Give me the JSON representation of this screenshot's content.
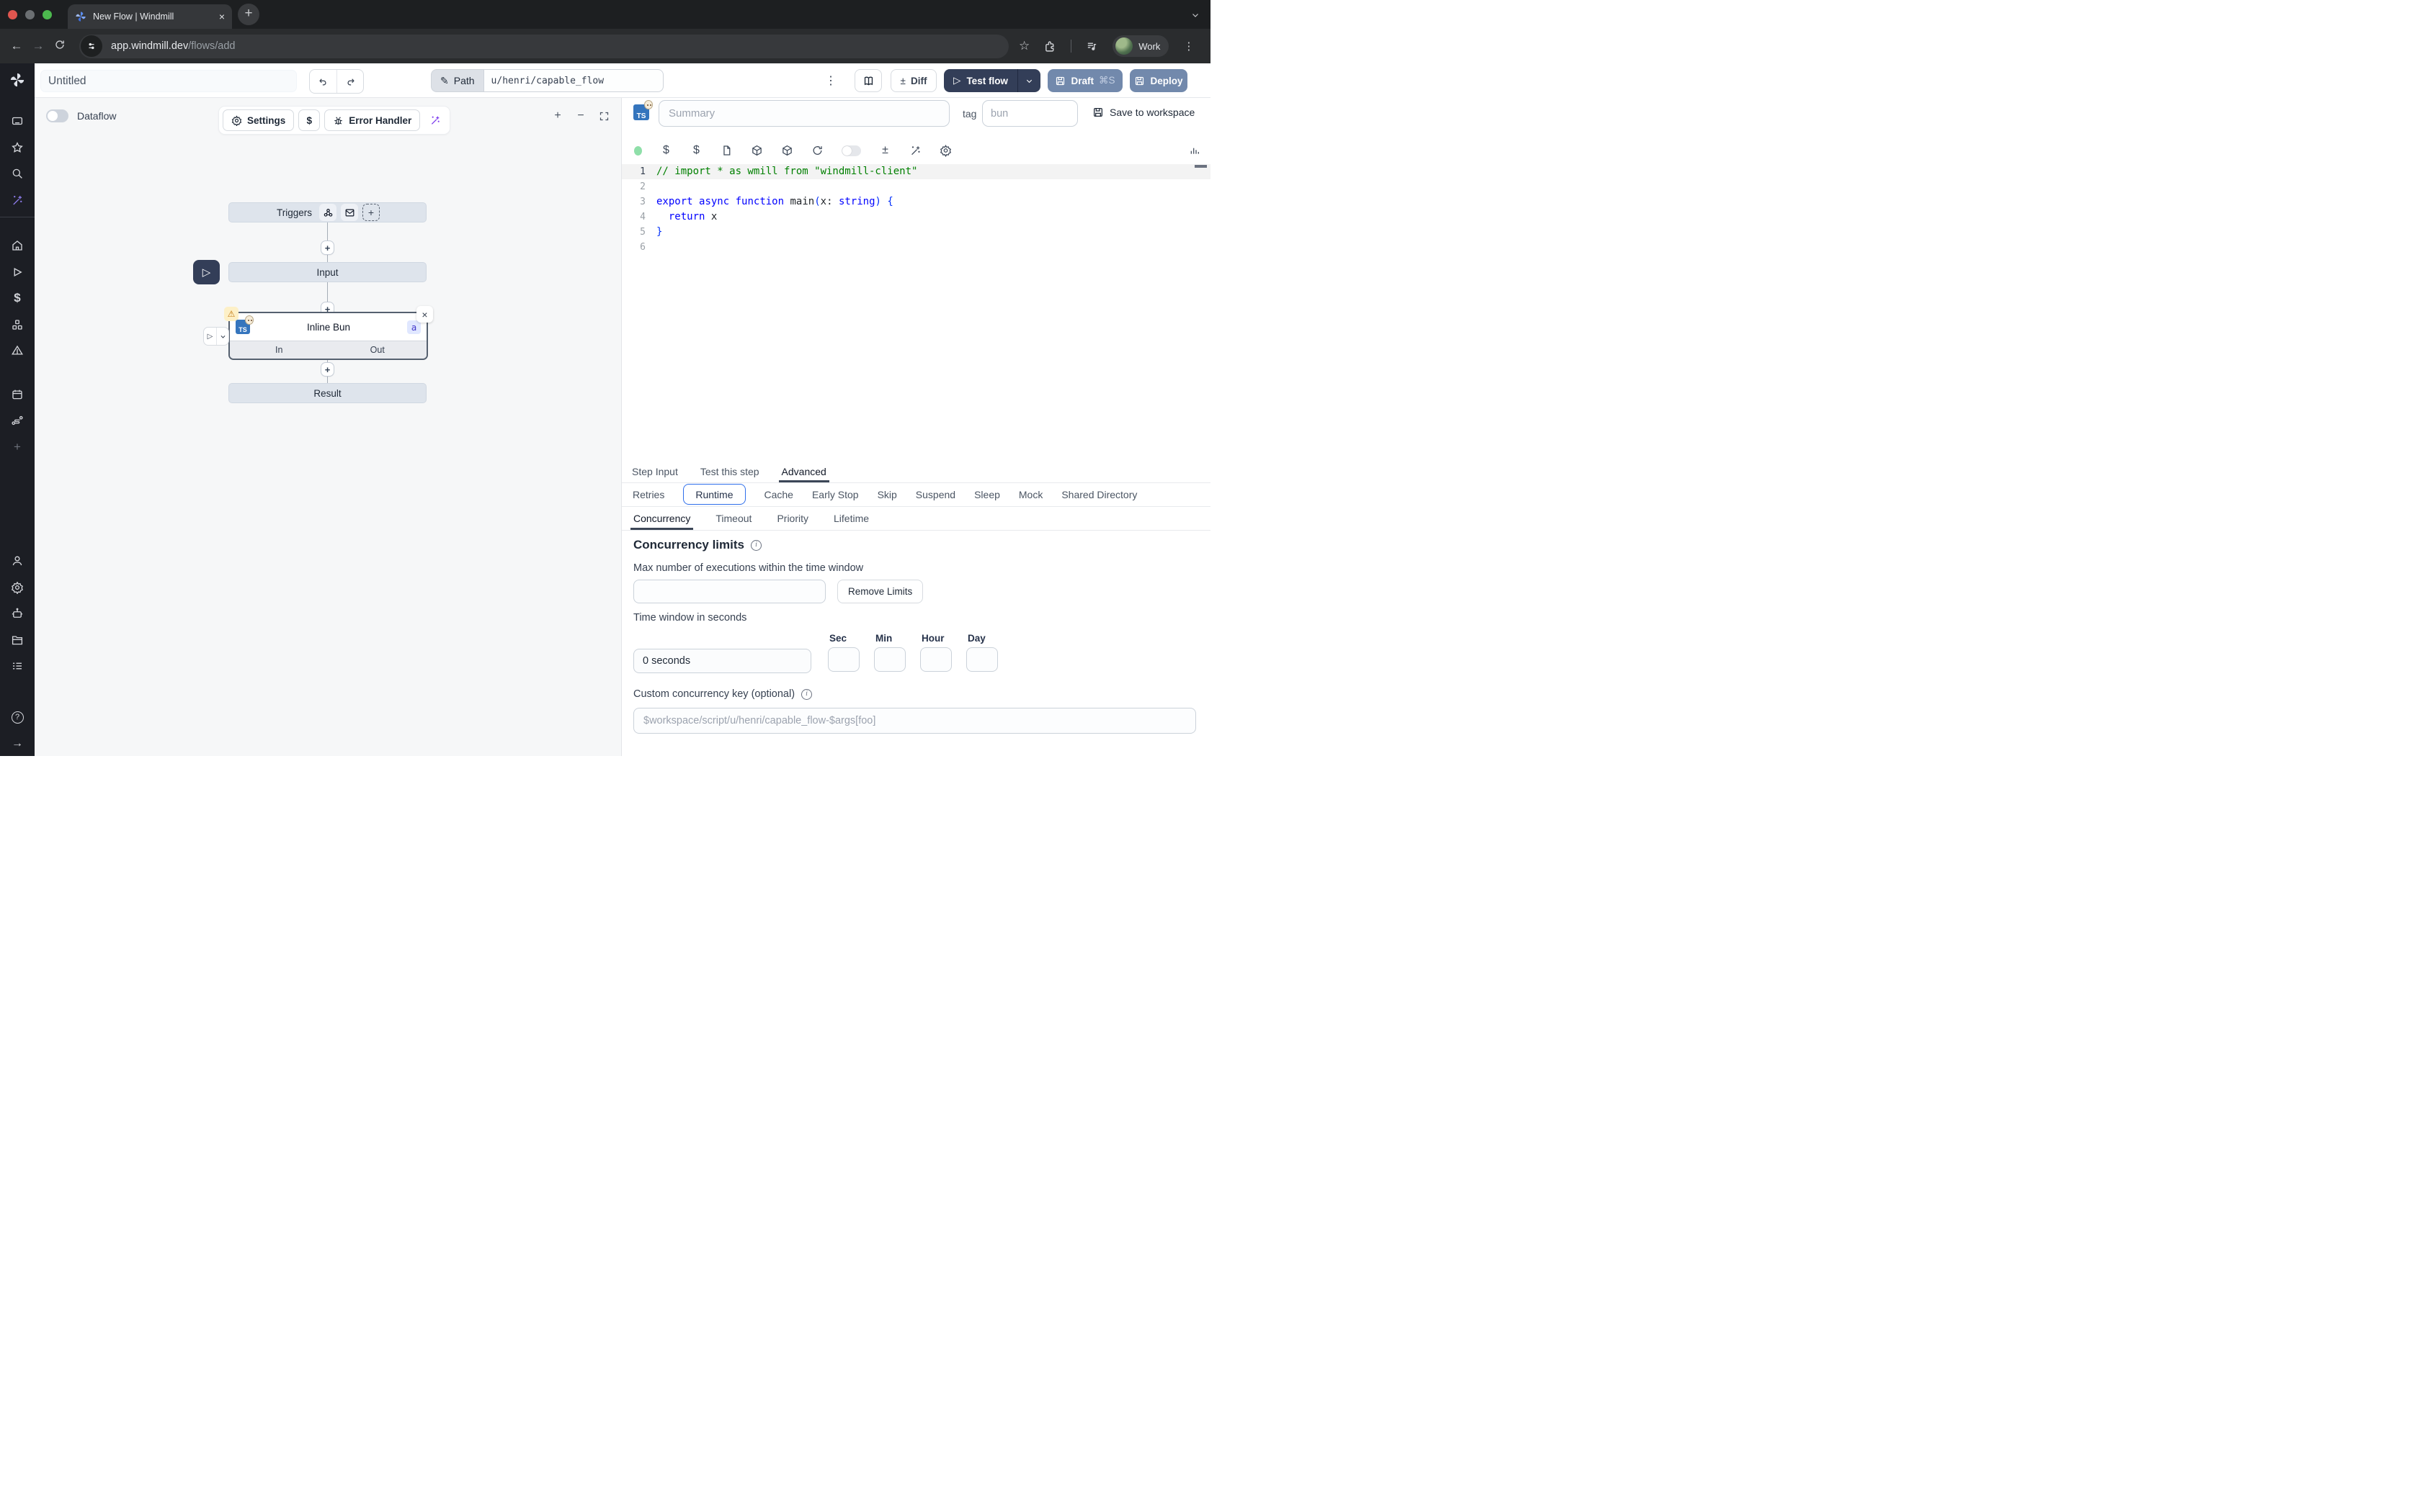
{
  "browser": {
    "tab_title": "New Flow | Windmill",
    "url_host": "app.windmill.dev",
    "url_path": "/flows/add",
    "profile_label": "Work"
  },
  "header": {
    "flow_name_value": "Untitled",
    "path_label": "Path",
    "path_value": "u/henri/capable_flow",
    "diff_label": "Diff",
    "test_flow_label": "Test flow",
    "draft_label": "Draft",
    "draft_shortcut": "⌘S",
    "deploy_label": "Deploy"
  },
  "sidebar": {
    "top_icons": [
      "apps-grid-icon",
      "star-icon",
      "search-icon",
      "ai-wand-icon"
    ],
    "main_icons": [
      "home-icon",
      "runs-icon",
      "variables-icon",
      "resources-icon",
      "triggers-icon",
      "schedules-icon",
      "flows-icon",
      "add-icon"
    ],
    "bottom_icons": [
      "user-icon",
      "settings-icon",
      "workers-icon",
      "folders-icon",
      "logs-icon",
      "help-icon",
      "collapse-icon"
    ]
  },
  "flow_panel": {
    "dataflow_label": "Dataflow",
    "settings_label": "Settings",
    "dollar_label": "$",
    "error_handler_label": "Error Handler",
    "triggers_label": "Triggers",
    "input_label": "Input",
    "step": {
      "title": "Inline Bun",
      "language_badge": "TS",
      "id_badge": "a",
      "in_label": "In",
      "out_label": "Out"
    },
    "result_label": "Result"
  },
  "step_editor": {
    "summary_placeholder": "Summary",
    "tag_label": "tag",
    "tag_value": "bun",
    "save_label": "Save to workspace",
    "toolbar_icons": [
      "dollar-icon",
      "dollar-icon",
      "script-file-icon",
      "package-icon",
      "package-icon",
      "refresh-icon",
      "assistant-toggle",
      "diff-icon",
      "ai-wand-icon",
      "gear-icon"
    ],
    "code": {
      "lines": [
        {
          "n": "1",
          "active": true,
          "segments": [
            {
              "text": "// import * as wmill from \"windmill-client\"",
              "style": "comment"
            }
          ]
        },
        {
          "n": "2",
          "segments": []
        },
        {
          "n": "3",
          "segments": [
            {
              "text": "export",
              "style": "keyword"
            },
            {
              "text": " ",
              "style": "plain"
            },
            {
              "text": "async",
              "style": "keyword"
            },
            {
              "text": " ",
              "style": "plain"
            },
            {
              "text": "function",
              "style": "keyword"
            },
            {
              "text": " main",
              "style": "plain"
            },
            {
              "text": "(",
              "style": "bracket"
            },
            {
              "text": "x: ",
              "style": "plain"
            },
            {
              "text": "string",
              "style": "keyword"
            },
            {
              "text": ")",
              "style": "bracket"
            },
            {
              "text": " ",
              "style": "plain"
            },
            {
              "text": "{",
              "style": "bracket"
            }
          ]
        },
        {
          "n": "4",
          "segments": [
            {
              "text": "  ",
              "style": "plain"
            },
            {
              "text": "return",
              "style": "keyword"
            },
            {
              "text": " x",
              "style": "plain"
            }
          ]
        },
        {
          "n": "5",
          "segments": [
            {
              "text": "}",
              "style": "bracket"
            }
          ]
        },
        {
          "n": "6",
          "segments": []
        }
      ]
    },
    "tabs": {
      "items": [
        "Step Input",
        "Test this step",
        "Advanced"
      ],
      "active": "Advanced"
    },
    "advanced_tabs": {
      "items": [
        "Retries",
        "Runtime",
        "Cache",
        "Early Stop",
        "Skip",
        "Suspend",
        "Sleep",
        "Mock",
        "Shared Directory"
      ],
      "active": "Runtime"
    },
    "runtime_tabs": {
      "items": [
        "Concurrency",
        "Timeout",
        "Priority",
        "Lifetime"
      ],
      "active": "Concurrency"
    },
    "concurrency": {
      "heading": "Concurrency limits",
      "max_label": "Max number of executions within the time window",
      "remove_limits_label": "Remove Limits",
      "time_window_label": "Time window in seconds",
      "time_window_value": "0 seconds",
      "unit_labels": [
        "Sec",
        "Min",
        "Hour",
        "Day"
      ],
      "custom_key_label": "Custom concurrency key (optional)",
      "custom_key_placeholder": "$workspace/script/u/henri/capable_flow-$args[foo]"
    }
  }
}
